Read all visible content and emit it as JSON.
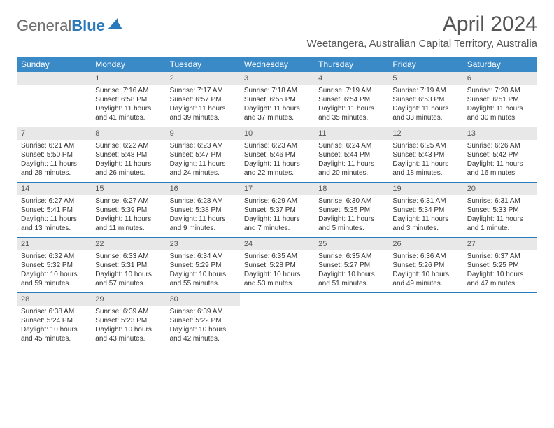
{
  "brand": {
    "name_gray": "General",
    "name_blue": "Blue"
  },
  "title": "April 2024",
  "location": "Weetangera, Australian Capital Territory, Australia",
  "day_headers": [
    "Sunday",
    "Monday",
    "Tuesday",
    "Wednesday",
    "Thursday",
    "Friday",
    "Saturday"
  ],
  "colors": {
    "header_bg": "#3a8ac8",
    "header_text": "#ffffff",
    "daynum_bg": "#e8e8e8",
    "border": "#2a7ab9",
    "text": "#333333",
    "title_text": "#555555"
  },
  "weeks": [
    [
      {
        "n": "",
        "sunrise": "",
        "sunset": "",
        "daylight": ""
      },
      {
        "n": "1",
        "sunrise": "Sunrise: 7:16 AM",
        "sunset": "Sunset: 6:58 PM",
        "daylight": "Daylight: 11 hours and 41 minutes."
      },
      {
        "n": "2",
        "sunrise": "Sunrise: 7:17 AM",
        "sunset": "Sunset: 6:57 PM",
        "daylight": "Daylight: 11 hours and 39 minutes."
      },
      {
        "n": "3",
        "sunrise": "Sunrise: 7:18 AM",
        "sunset": "Sunset: 6:55 PM",
        "daylight": "Daylight: 11 hours and 37 minutes."
      },
      {
        "n": "4",
        "sunrise": "Sunrise: 7:19 AM",
        "sunset": "Sunset: 6:54 PM",
        "daylight": "Daylight: 11 hours and 35 minutes."
      },
      {
        "n": "5",
        "sunrise": "Sunrise: 7:19 AM",
        "sunset": "Sunset: 6:53 PM",
        "daylight": "Daylight: 11 hours and 33 minutes."
      },
      {
        "n": "6",
        "sunrise": "Sunrise: 7:20 AM",
        "sunset": "Sunset: 6:51 PM",
        "daylight": "Daylight: 11 hours and 30 minutes."
      }
    ],
    [
      {
        "n": "7",
        "sunrise": "Sunrise: 6:21 AM",
        "sunset": "Sunset: 5:50 PM",
        "daylight": "Daylight: 11 hours and 28 minutes."
      },
      {
        "n": "8",
        "sunrise": "Sunrise: 6:22 AM",
        "sunset": "Sunset: 5:48 PM",
        "daylight": "Daylight: 11 hours and 26 minutes."
      },
      {
        "n": "9",
        "sunrise": "Sunrise: 6:23 AM",
        "sunset": "Sunset: 5:47 PM",
        "daylight": "Daylight: 11 hours and 24 minutes."
      },
      {
        "n": "10",
        "sunrise": "Sunrise: 6:23 AM",
        "sunset": "Sunset: 5:46 PM",
        "daylight": "Daylight: 11 hours and 22 minutes."
      },
      {
        "n": "11",
        "sunrise": "Sunrise: 6:24 AM",
        "sunset": "Sunset: 5:44 PM",
        "daylight": "Daylight: 11 hours and 20 minutes."
      },
      {
        "n": "12",
        "sunrise": "Sunrise: 6:25 AM",
        "sunset": "Sunset: 5:43 PM",
        "daylight": "Daylight: 11 hours and 18 minutes."
      },
      {
        "n": "13",
        "sunrise": "Sunrise: 6:26 AM",
        "sunset": "Sunset: 5:42 PM",
        "daylight": "Daylight: 11 hours and 16 minutes."
      }
    ],
    [
      {
        "n": "14",
        "sunrise": "Sunrise: 6:27 AM",
        "sunset": "Sunset: 5:41 PM",
        "daylight": "Daylight: 11 hours and 13 minutes."
      },
      {
        "n": "15",
        "sunrise": "Sunrise: 6:27 AM",
        "sunset": "Sunset: 5:39 PM",
        "daylight": "Daylight: 11 hours and 11 minutes."
      },
      {
        "n": "16",
        "sunrise": "Sunrise: 6:28 AM",
        "sunset": "Sunset: 5:38 PM",
        "daylight": "Daylight: 11 hours and 9 minutes."
      },
      {
        "n": "17",
        "sunrise": "Sunrise: 6:29 AM",
        "sunset": "Sunset: 5:37 PM",
        "daylight": "Daylight: 11 hours and 7 minutes."
      },
      {
        "n": "18",
        "sunrise": "Sunrise: 6:30 AM",
        "sunset": "Sunset: 5:35 PM",
        "daylight": "Daylight: 11 hours and 5 minutes."
      },
      {
        "n": "19",
        "sunrise": "Sunrise: 6:31 AM",
        "sunset": "Sunset: 5:34 PM",
        "daylight": "Daylight: 11 hours and 3 minutes."
      },
      {
        "n": "20",
        "sunrise": "Sunrise: 6:31 AM",
        "sunset": "Sunset: 5:33 PM",
        "daylight": "Daylight: 11 hours and 1 minute."
      }
    ],
    [
      {
        "n": "21",
        "sunrise": "Sunrise: 6:32 AM",
        "sunset": "Sunset: 5:32 PM",
        "daylight": "Daylight: 10 hours and 59 minutes."
      },
      {
        "n": "22",
        "sunrise": "Sunrise: 6:33 AM",
        "sunset": "Sunset: 5:31 PM",
        "daylight": "Daylight: 10 hours and 57 minutes."
      },
      {
        "n": "23",
        "sunrise": "Sunrise: 6:34 AM",
        "sunset": "Sunset: 5:29 PM",
        "daylight": "Daylight: 10 hours and 55 minutes."
      },
      {
        "n": "24",
        "sunrise": "Sunrise: 6:35 AM",
        "sunset": "Sunset: 5:28 PM",
        "daylight": "Daylight: 10 hours and 53 minutes."
      },
      {
        "n": "25",
        "sunrise": "Sunrise: 6:35 AM",
        "sunset": "Sunset: 5:27 PM",
        "daylight": "Daylight: 10 hours and 51 minutes."
      },
      {
        "n": "26",
        "sunrise": "Sunrise: 6:36 AM",
        "sunset": "Sunset: 5:26 PM",
        "daylight": "Daylight: 10 hours and 49 minutes."
      },
      {
        "n": "27",
        "sunrise": "Sunrise: 6:37 AM",
        "sunset": "Sunset: 5:25 PM",
        "daylight": "Daylight: 10 hours and 47 minutes."
      }
    ],
    [
      {
        "n": "28",
        "sunrise": "Sunrise: 6:38 AM",
        "sunset": "Sunset: 5:24 PM",
        "daylight": "Daylight: 10 hours and 45 minutes."
      },
      {
        "n": "29",
        "sunrise": "Sunrise: 6:39 AM",
        "sunset": "Sunset: 5:23 PM",
        "daylight": "Daylight: 10 hours and 43 minutes."
      },
      {
        "n": "30",
        "sunrise": "Sunrise: 6:39 AM",
        "sunset": "Sunset: 5:22 PM",
        "daylight": "Daylight: 10 hours and 42 minutes."
      },
      {
        "n": "",
        "sunrise": "",
        "sunset": "",
        "daylight": ""
      },
      {
        "n": "",
        "sunrise": "",
        "sunset": "",
        "daylight": ""
      },
      {
        "n": "",
        "sunrise": "",
        "sunset": "",
        "daylight": ""
      },
      {
        "n": "",
        "sunrise": "",
        "sunset": "",
        "daylight": ""
      }
    ]
  ]
}
